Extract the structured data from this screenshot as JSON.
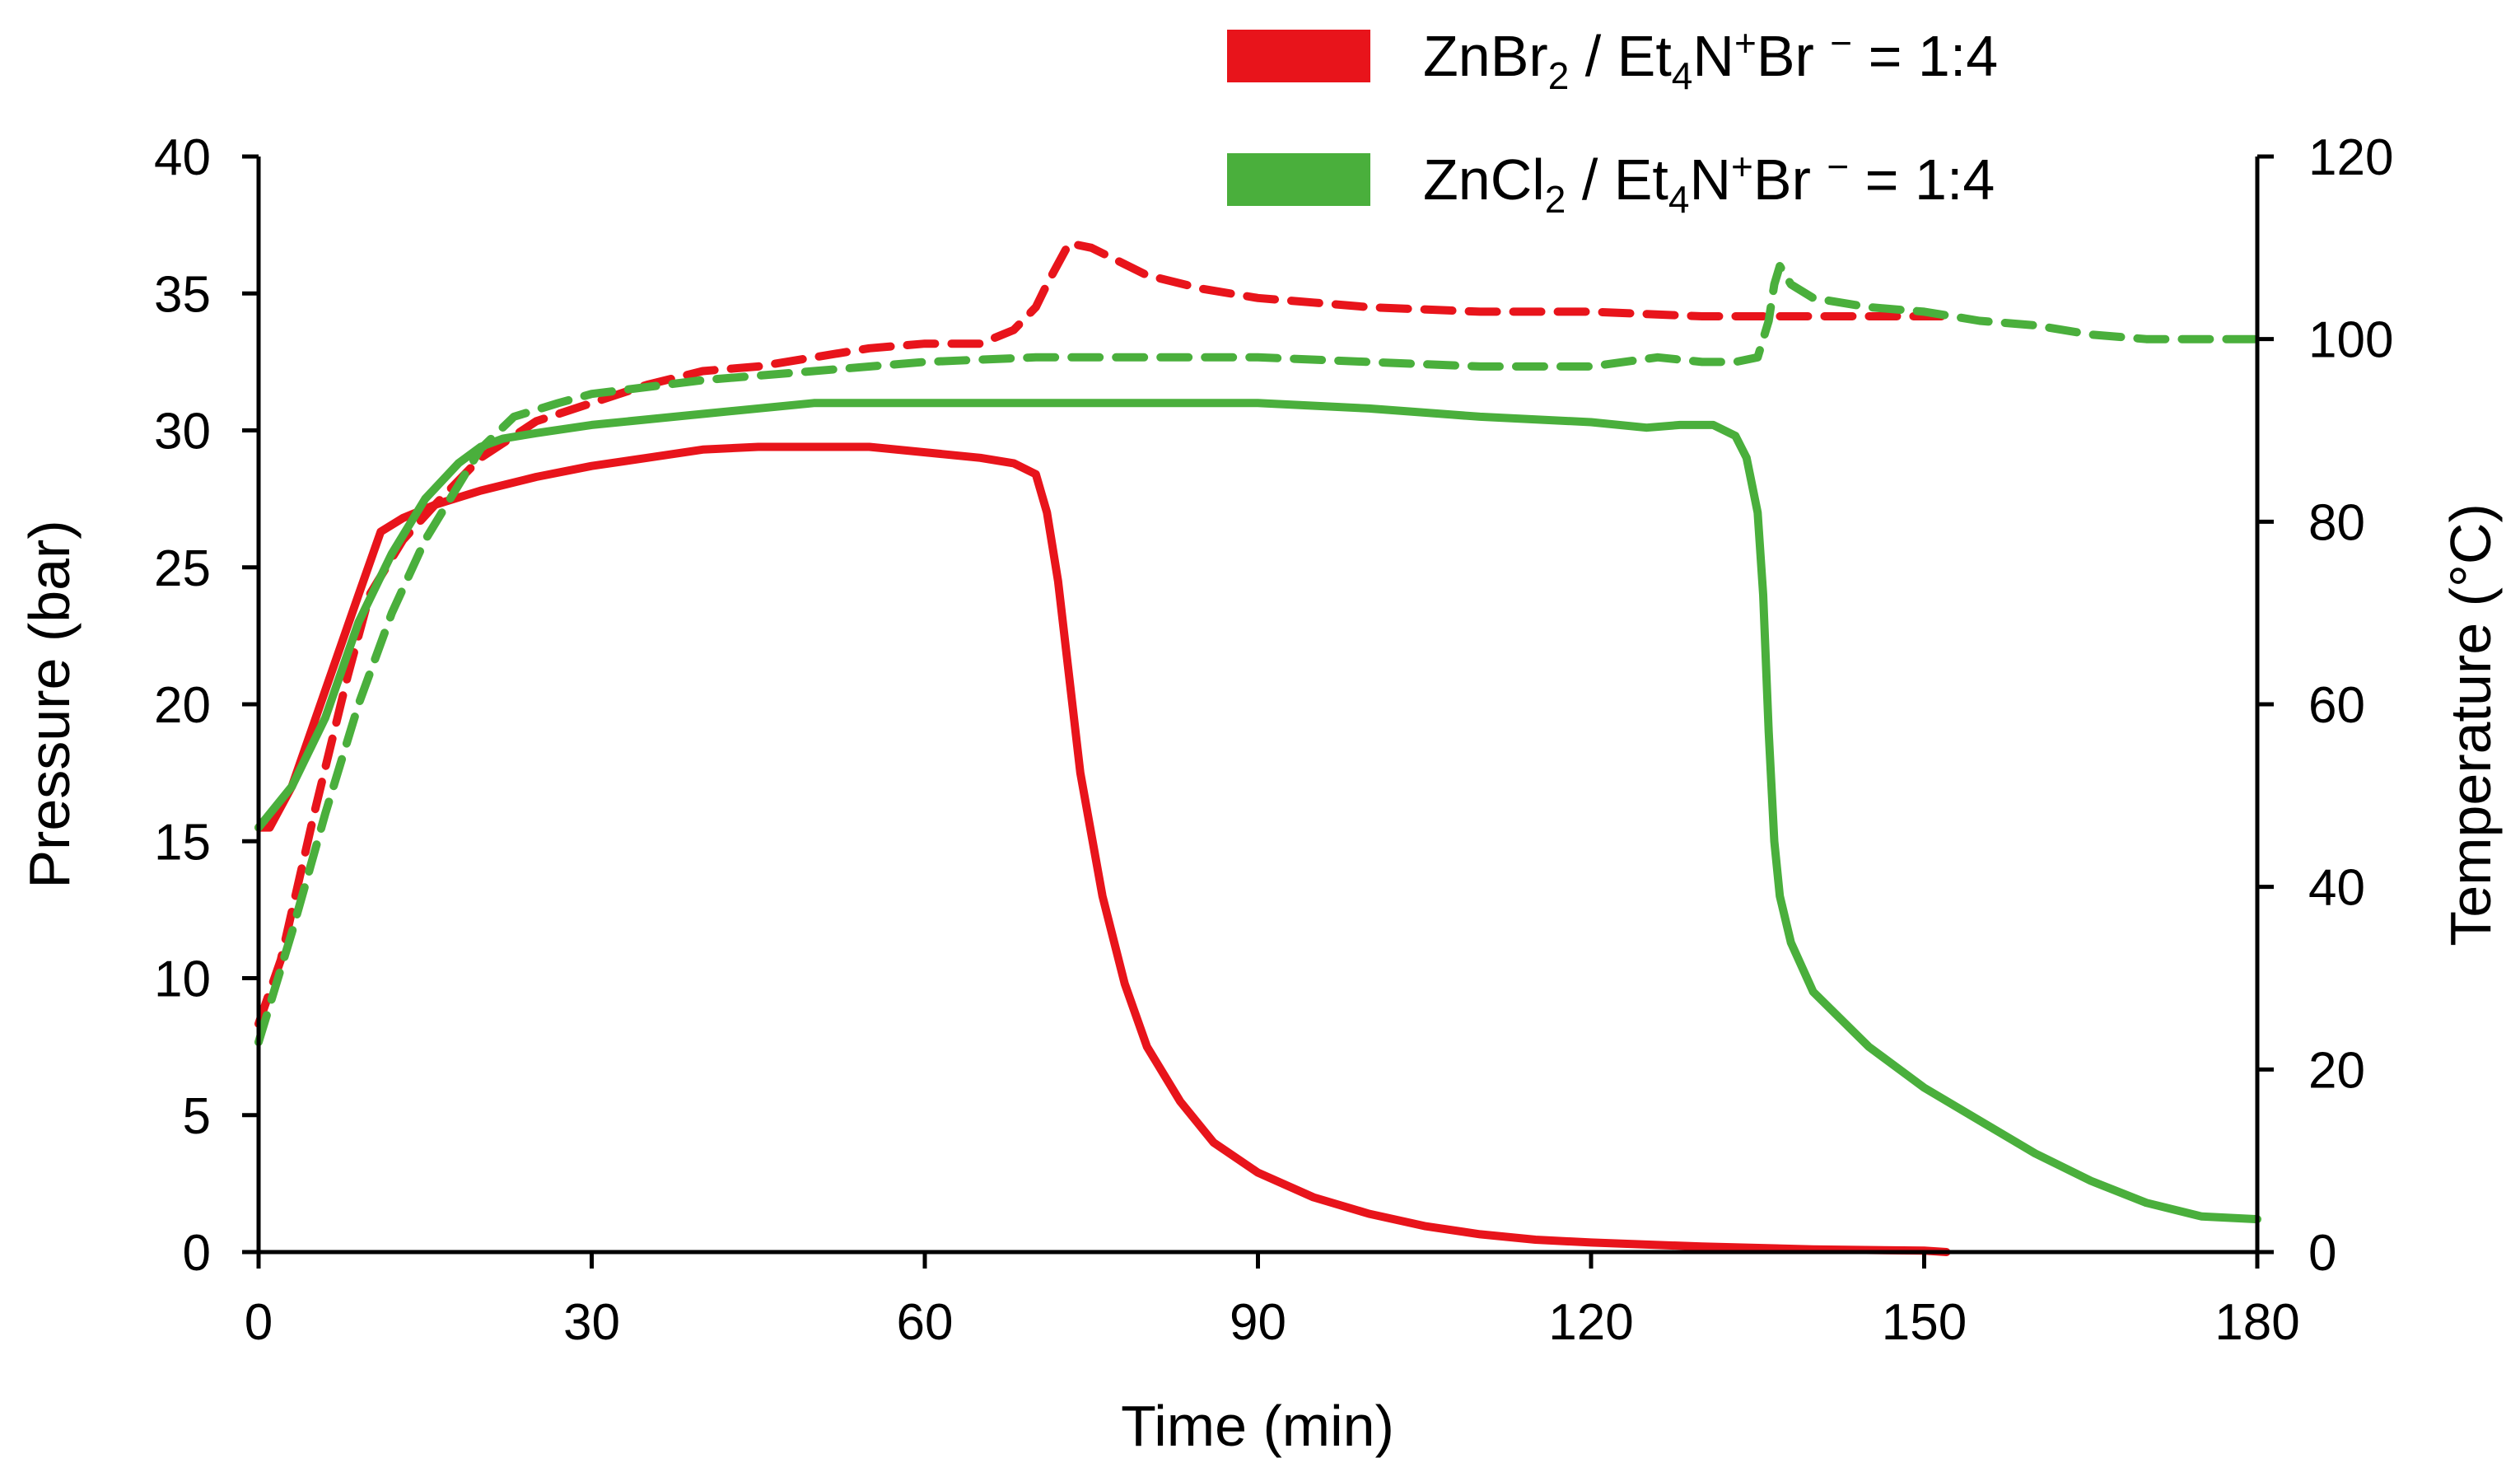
{
  "chart_data": {
    "type": "line",
    "title": "",
    "xlabel": "Time (min)",
    "ylabel": "Pressure (bar)",
    "y2label": "Temperature (°C)",
    "xlim": [
      0,
      180
    ],
    "ylim": [
      0,
      40
    ],
    "y2lim": [
      0,
      120
    ],
    "xticks": [
      "0",
      "30",
      "60",
      "90",
      "120",
      "150",
      "180"
    ],
    "yticks": [
      "0",
      "5",
      "10",
      "15",
      "20",
      "25",
      "30",
      "35",
      "40"
    ],
    "y2ticks": [
      "0",
      "20",
      "40",
      "60",
      "80",
      "100",
      "120"
    ],
    "grid": false,
    "legend_position": "top-right, above plot",
    "legend": [
      {
        "text": "ZnBr",
        "sub": "2",
        "text2": " / Et",
        "sub2": "4",
        "text3": "N",
        "sup": "+",
        "text4": "Br ",
        "sup2": "−",
        "text5": " = 1:4",
        "color": "#e8141b"
      },
      {
        "text": "ZnCl",
        "sub": "2",
        "text2": " / Et",
        "sub2": "4",
        "text3": "N",
        "sup": "+",
        "text4": "Br ",
        "sup2": "−",
        "text5": " = 1:4",
        "color": "#4aaf3c"
      }
    ],
    "series": [
      {
        "name": "ZnBr2 / Et4N+Br- = 1:4 pressure",
        "axis": "left",
        "color": "#e8141b",
        "style": "solid",
        "x": [
          0,
          1,
          3,
          6,
          9,
          11,
          13,
          16,
          20,
          25,
          30,
          35,
          40,
          45,
          50,
          55,
          60,
          65,
          68,
          70,
          71,
          72,
          74,
          76,
          78,
          80,
          83,
          86,
          90,
          95,
          100,
          105,
          110,
          115,
          120,
          130,
          140,
          150,
          152
        ],
        "y": [
          15.5,
          15.5,
          17,
          20.5,
          24,
          26.3,
          26.8,
          27.3,
          27.8,
          28.3,
          28.7,
          29,
          29.3,
          29.4,
          29.4,
          29.4,
          29.2,
          29,
          28.8,
          28.4,
          27,
          24.5,
          17.5,
          13,
          9.8,
          7.5,
          5.5,
          4,
          2.9,
          2,
          1.4,
          0.95,
          0.65,
          0.45,
          0.35,
          0.2,
          0.1,
          0.05,
          0
        ]
      },
      {
        "name": "ZnBr2 / Et4N+Br- = 1:4 temperature",
        "axis": "right",
        "color": "#e8141b",
        "style": "dashed",
        "x": [
          0,
          2,
          5,
          8,
          10,
          13,
          16,
          20,
          25,
          30,
          35,
          40,
          45,
          50,
          55,
          60,
          65,
          68,
          70,
          71,
          73,
          75,
          80,
          85,
          90,
          95,
          100,
          110,
          120,
          130,
          140,
          150,
          152
        ],
        "y": [
          25,
          32,
          48,
          63,
          72,
          78,
          82,
          87,
          91,
          93,
          95,
          96.5,
          97,
          98,
          99,
          99.5,
          99.5,
          101,
          103.5,
          106,
          110.5,
          110,
          107,
          105.5,
          104.5,
          104,
          103.5,
          103,
          103,
          102.5,
          102.5,
          102.5,
          102.5
        ]
      },
      {
        "name": "ZnCl2 / Et4N+Br- = 1:4 pressure",
        "axis": "left",
        "color": "#4aaf3c",
        "style": "solid",
        "x": [
          0,
          3,
          6,
          9,
          12,
          15,
          18,
          20,
          22,
          25,
          30,
          40,
          50,
          60,
          70,
          80,
          90,
          100,
          110,
          120,
          125,
          128,
          131,
          133,
          134,
          135,
          135.5,
          136,
          136.5,
          137,
          138,
          140,
          145,
          150,
          155,
          160,
          165,
          170,
          175,
          180
        ],
        "y": [
          15.5,
          17,
          19.5,
          23,
          25.5,
          27.5,
          28.8,
          29.4,
          29.7,
          29.9,
          30.2,
          30.6,
          31,
          31,
          31,
          31,
          31,
          30.8,
          30.5,
          30.3,
          30.1,
          30.2,
          30.2,
          29.8,
          29,
          27,
          24,
          19,
          15,
          13,
          11.3,
          9.5,
          7.5,
          6,
          4.8,
          3.6,
          2.6,
          1.8,
          1.3,
          1.2
        ]
      },
      {
        "name": "ZnCl2 / Et4N+Br- = 1:4 temperature",
        "axis": "right",
        "color": "#4aaf3c",
        "style": "dashed",
        "x": [
          0,
          3,
          6,
          9,
          12,
          15,
          18,
          20,
          23,
          27,
          30,
          40,
          50,
          60,
          70,
          80,
          90,
          100,
          110,
          120,
          126,
          130,
          133,
          135,
          136,
          136.5,
          137,
          138,
          140,
          145,
          150,
          155,
          160,
          165,
          170,
          175,
          180
        ],
        "y": [
          23,
          35,
          48,
          60,
          70,
          78,
          84,
          88,
          91.5,
          93,
          94,
          95.5,
          96.5,
          97.5,
          98,
          98,
          98,
          97.5,
          97,
          97,
          98,
          97.5,
          97.5,
          98,
          102,
          106,
          108,
          106,
          104.5,
          103.5,
          103,
          102,
          101.5,
          100.5,
          100,
          100,
          100
        ]
      }
    ]
  }
}
